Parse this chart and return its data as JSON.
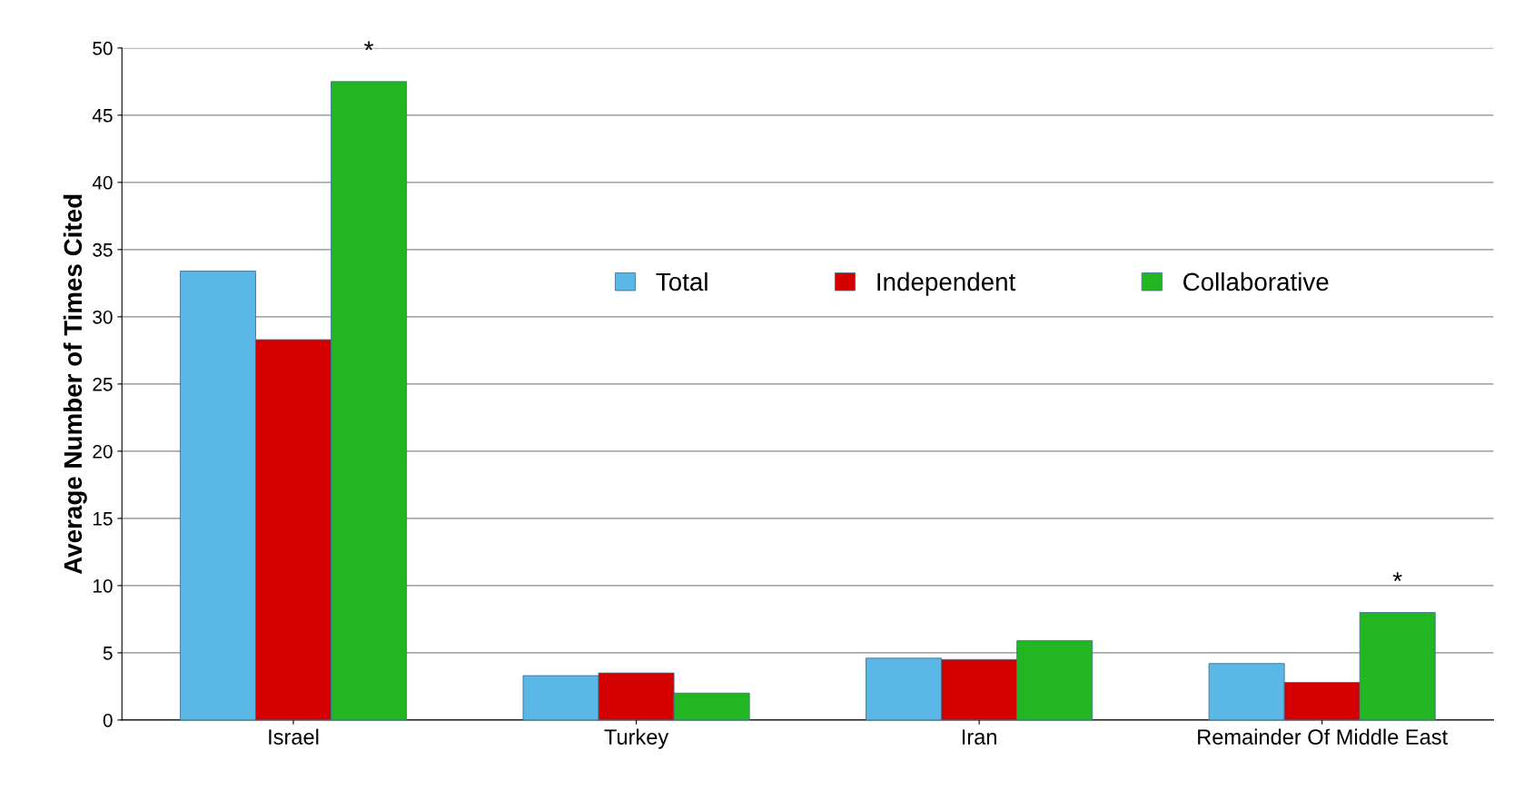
{
  "chart_data": {
    "type": "bar",
    "ylabel": "Average Number of Times Cited",
    "categories": [
      "Israel",
      "Turkey",
      "Iran",
      "Remainder Of Middle East"
    ],
    "series": [
      {
        "name": "Total",
        "color": "#5bb7e5",
        "values": [
          33.4,
          3.3,
          4.6,
          4.2
        ]
      },
      {
        "name": "Independent",
        "color": "#d40000",
        "values": [
          28.3,
          3.5,
          4.5,
          2.8
        ]
      },
      {
        "name": "Collaborative",
        "color": "#22b722",
        "values": [
          47.5,
          2.0,
          5.9,
          8.0
        ]
      }
    ],
    "ylim": [
      0,
      50
    ],
    "yticks": [
      0,
      5,
      10,
      15,
      20,
      25,
      30,
      35,
      40,
      45,
      50
    ],
    "grid": "y",
    "legend": "top",
    "annotations": [
      "*",
      "*"
    ]
  }
}
